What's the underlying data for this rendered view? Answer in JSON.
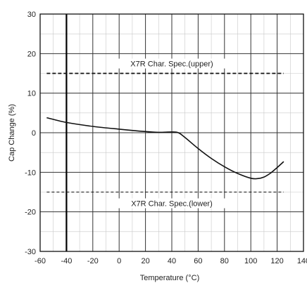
{
  "chart_data": {
    "type": "line",
    "title": "",
    "xlabel": "Temperature (°C)",
    "ylabel": "Cap Change (%)",
    "xlim": [
      -60,
      140
    ],
    "ylim": [
      -30,
      30
    ],
    "xticks": [
      -60,
      -40,
      -20,
      0,
      20,
      40,
      60,
      80,
      100,
      120,
      140
    ],
    "yticks": [
      30,
      20,
      10,
      0,
      -10,
      -20,
      -30
    ],
    "x_tick_labels": [
      "-60",
      "-40",
      "-20",
      "0",
      "20",
      "40",
      "60",
      "80",
      "100",
      "120",
      "140"
    ],
    "y_tick_labels": [
      "30",
      "20",
      "10",
      "0",
      "-10",
      "-20",
      "-30"
    ],
    "grid": true,
    "series": [
      {
        "x": [
          -55,
          -40,
          -20,
          0,
          20,
          30,
          40,
          45,
          50,
          60,
          70,
          80,
          90,
          100,
          105,
          110,
          115,
          120,
          125
        ],
        "y": [
          3.8,
          2.6,
          1.6,
          0.9,
          0.3,
          0.1,
          0.2,
          0.0,
          -1.2,
          -4.0,
          -6.5,
          -8.6,
          -10.3,
          -11.5,
          -11.6,
          -11.2,
          -10.2,
          -8.8,
          -7.3
        ],
        "color": "#111111"
      }
    ],
    "annotations": [
      {
        "text": "X7R Char. Spec.(upper)",
        "y": 15,
        "x1": -55,
        "x2": 125,
        "style": "dashed"
      },
      {
        "text": "X7R Char. Spec.(lower)",
        "y": -15,
        "x1": -55,
        "x2": 125,
        "style": "dashed"
      }
    ]
  }
}
